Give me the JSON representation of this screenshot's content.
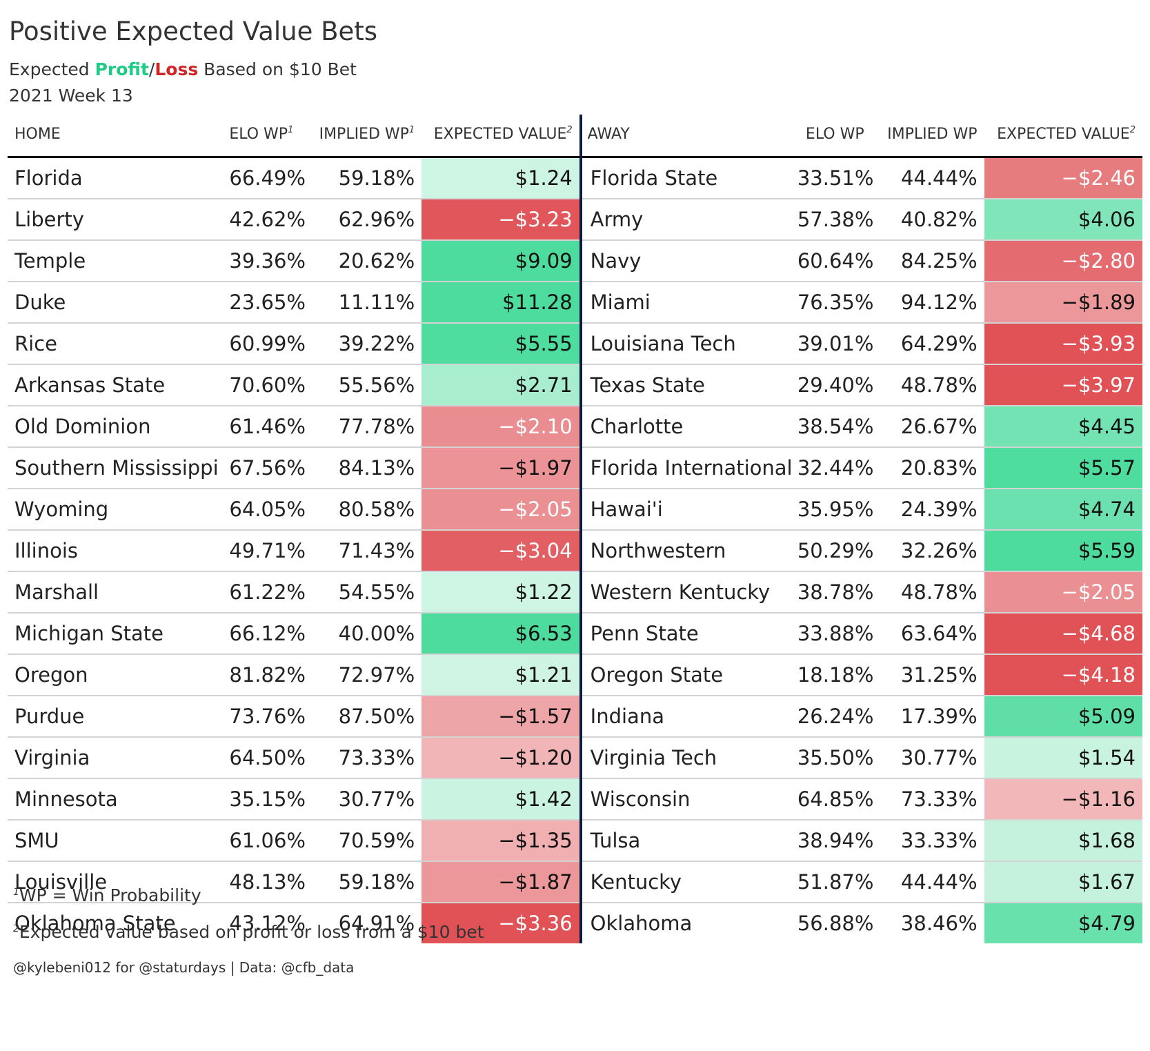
{
  "title": "Positive Expected Value Bets",
  "subtitle": {
    "prefix": "Expected ",
    "profit": "Profit",
    "slash": "/",
    "loss": "Loss",
    "suffix": " Based on $10 Bet"
  },
  "week": "2021 Week 13",
  "colors": {
    "profit": "#1fcc85",
    "loss": "#d12428",
    "divider": "#0d1b3e"
  },
  "headers": {
    "home": "HOME",
    "elo_wp": "ELO WP",
    "implied_wp": "IMPLIED WP",
    "expected_value": "EXPECTED VALUE",
    "away": "AWAY",
    "elo_wp_away": "ELO WP",
    "implied_wp_away": "IMPLIED WP",
    "expected_value_away": "EXPECTED VALUE",
    "fn1": "1",
    "fn2": "2"
  },
  "rows": [
    {
      "home": "Florida",
      "home_elo": "66.49%",
      "home_implied": "59.18%",
      "home_ev": "$1.24",
      "home_ev_num": 1.24,
      "away": "Florida State",
      "away_elo": "33.51%",
      "away_implied": "44.44%",
      "away_ev": "−$2.46",
      "away_ev_num": -2.46
    },
    {
      "home": "Liberty",
      "home_elo": "42.62%",
      "home_implied": "62.96%",
      "home_ev": "−$3.23",
      "home_ev_num": -3.23,
      "away": "Army",
      "away_elo": "57.38%",
      "away_implied": "40.82%",
      "away_ev": "$4.06",
      "away_ev_num": 4.06
    },
    {
      "home": "Temple",
      "home_elo": "39.36%",
      "home_implied": "20.62%",
      "home_ev": "$9.09",
      "home_ev_num": 9.09,
      "away": "Navy",
      "away_elo": "60.64%",
      "away_implied": "84.25%",
      "away_ev": "−$2.80",
      "away_ev_num": -2.8
    },
    {
      "home": "Duke",
      "home_elo": "23.65%",
      "home_implied": "11.11%",
      "home_ev": "$11.28",
      "home_ev_num": 11.28,
      "away": "Miami",
      "away_elo": "76.35%",
      "away_implied": "94.12%",
      "away_ev": "−$1.89",
      "away_ev_num": -1.89
    },
    {
      "home": "Rice",
      "home_elo": "60.99%",
      "home_implied": "39.22%",
      "home_ev": "$5.55",
      "home_ev_num": 5.55,
      "away": "Louisiana Tech",
      "away_elo": "39.01%",
      "away_implied": "64.29%",
      "away_ev": "−$3.93",
      "away_ev_num": -3.93
    },
    {
      "home": "Arkansas State",
      "home_elo": "70.60%",
      "home_implied": "55.56%",
      "home_ev": "$2.71",
      "home_ev_num": 2.71,
      "away": "Texas State",
      "away_elo": "29.40%",
      "away_implied": "48.78%",
      "away_ev": "−$3.97",
      "away_ev_num": -3.97
    },
    {
      "home": "Old Dominion",
      "home_elo": "61.46%",
      "home_implied": "77.78%",
      "home_ev": "−$2.10",
      "home_ev_num": -2.1,
      "away": "Charlotte",
      "away_elo": "38.54%",
      "away_implied": "26.67%",
      "away_ev": "$4.45",
      "away_ev_num": 4.45
    },
    {
      "home": "Southern Mississippi",
      "home_elo": "67.56%",
      "home_implied": "84.13%",
      "home_ev": "−$1.97",
      "home_ev_num": -1.97,
      "away": "Florida International",
      "away_elo": "32.44%",
      "away_implied": "20.83%",
      "away_ev": "$5.57",
      "away_ev_num": 5.57
    },
    {
      "home": "Wyoming",
      "home_elo": "64.05%",
      "home_implied": "80.58%",
      "home_ev": "−$2.05",
      "home_ev_num": -2.05,
      "away": "Hawai'i",
      "away_elo": "35.95%",
      "away_implied": "24.39%",
      "away_ev": "$4.74",
      "away_ev_num": 4.74
    },
    {
      "home": "Illinois",
      "home_elo": "49.71%",
      "home_implied": "71.43%",
      "home_ev": "−$3.04",
      "home_ev_num": -3.04,
      "away": "Northwestern",
      "away_elo": "50.29%",
      "away_implied": "32.26%",
      "away_ev": "$5.59",
      "away_ev_num": 5.59
    },
    {
      "home": "Marshall",
      "home_elo": "61.22%",
      "home_implied": "54.55%",
      "home_ev": "$1.22",
      "home_ev_num": 1.22,
      "away": "Western Kentucky",
      "away_elo": "38.78%",
      "away_implied": "48.78%",
      "away_ev": "−$2.05",
      "away_ev_num": -2.05
    },
    {
      "home": "Michigan State",
      "home_elo": "66.12%",
      "home_implied": "40.00%",
      "home_ev": "$6.53",
      "home_ev_num": 6.53,
      "away": "Penn State",
      "away_elo": "33.88%",
      "away_implied": "63.64%",
      "away_ev": "−$4.68",
      "away_ev_num": -4.68
    },
    {
      "home": "Oregon",
      "home_elo": "81.82%",
      "home_implied": "72.97%",
      "home_ev": "$1.21",
      "home_ev_num": 1.21,
      "away": "Oregon State",
      "away_elo": "18.18%",
      "away_implied": "31.25%",
      "away_ev": "−$4.18",
      "away_ev_num": -4.18
    },
    {
      "home": "Purdue",
      "home_elo": "73.76%",
      "home_implied": "87.50%",
      "home_ev": "−$1.57",
      "home_ev_num": -1.57,
      "away": "Indiana",
      "away_elo": "26.24%",
      "away_implied": "17.39%",
      "away_ev": "$5.09",
      "away_ev_num": 5.09
    },
    {
      "home": "Virginia",
      "home_elo": "64.50%",
      "home_implied": "73.33%",
      "home_ev": "−$1.20",
      "home_ev_num": -1.2,
      "away": "Virginia Tech",
      "away_elo": "35.50%",
      "away_implied": "30.77%",
      "away_ev": "$1.54",
      "away_ev_num": 1.54
    },
    {
      "home": "Minnesota",
      "home_elo": "35.15%",
      "home_implied": "30.77%",
      "home_ev": "$1.42",
      "home_ev_num": 1.42,
      "away": "Wisconsin",
      "away_elo": "64.85%",
      "away_implied": "73.33%",
      "away_ev": "−$1.16",
      "away_ev_num": -1.16
    },
    {
      "home": "SMU",
      "home_elo": "61.06%",
      "home_implied": "70.59%",
      "home_ev": "−$1.35",
      "home_ev_num": -1.35,
      "away": "Tulsa",
      "away_elo": "38.94%",
      "away_implied": "33.33%",
      "away_ev": "$1.68",
      "away_ev_num": 1.68
    },
    {
      "home": "Louisville",
      "home_elo": "48.13%",
      "home_implied": "59.18%",
      "home_ev": "−$1.87",
      "home_ev_num": -1.87,
      "away": "Kentucky",
      "away_elo": "51.87%",
      "away_implied": "44.44%",
      "away_ev": "$1.67",
      "away_ev_num": 1.67
    },
    {
      "home": "Oklahoma State",
      "home_elo": "43.12%",
      "home_implied": "64.91%",
      "home_ev": "−$3.36",
      "home_ev_num": -3.36,
      "away": "Oklahoma",
      "away_elo": "56.88%",
      "away_implied": "38.46%",
      "away_ev": "$4.79",
      "away_ev_num": 4.79
    }
  ],
  "footnotes": {
    "fn1_mark": "1",
    "fn1_text": "WP = Win Probability",
    "fn2_mark": "2",
    "fn2_text": "Expected value based on profit or loss from a $10 bet"
  },
  "credit": "@kylebeni012 for @staturdays | Data: @cfb_data"
}
